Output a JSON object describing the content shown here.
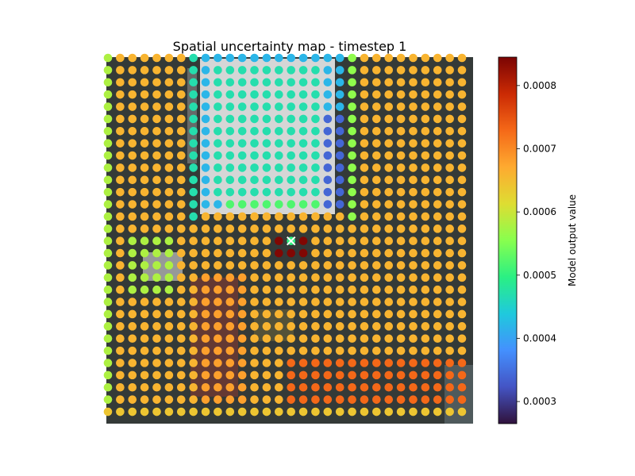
{
  "chart_data": {
    "type": "scatter",
    "title": "Spatial uncertainty map - timestep 1",
    "colorbar": {
      "label": "Model output value",
      "colormap": "turbo",
      "range": [
        0.000265,
        0.000845
      ],
      "ticks": [
        0.0003,
        0.0004,
        0.0005,
        0.0006,
        0.0007,
        0.0008
      ],
      "tick_labels": [
        "0.0003",
        "0.0004",
        "0.0005",
        "0.0006",
        "0.0007",
        "0.0008"
      ]
    },
    "grid": {
      "cols": 30,
      "rows": 30
    },
    "base_value": 0.00066,
    "value_regions": [
      {
        "name": "left-edge-column",
        "cols": [
          0,
          0
        ],
        "rows": [
          0,
          29
        ],
        "value": 0.00058
      },
      {
        "name": "left-band",
        "cols": [
          1,
          6
        ],
        "rows": [
          0,
          29
        ],
        "value": 0.00066
      },
      {
        "name": "upper-left-rim",
        "cols": [
          7,
          7
        ],
        "rows": [
          0,
          13
        ],
        "value": 0.00047
      },
      {
        "name": "upper-block-edge",
        "cols": [
          8,
          19
        ],
        "rows": [
          0,
          12
        ],
        "value": 0.00042
      },
      {
        "name": "upper-block-core",
        "cols": [
          9,
          17
        ],
        "rows": [
          1,
          11
        ],
        "value": 0.00047
      },
      {
        "name": "upper-block-right-rim",
        "cols": [
          18,
          19
        ],
        "rows": [
          5,
          12
        ],
        "value": 0.00034
      },
      {
        "name": "upper-right-edge",
        "cols": [
          20,
          20
        ],
        "rows": [
          0,
          13
        ],
        "value": 0.00056
      },
      {
        "name": "block-bottom-rim",
        "cols": [
          10,
          17
        ],
        "rows": [
          12,
          12
        ],
        "value": 0.00052
      },
      {
        "name": "small-left-patch",
        "cols": [
          3,
          4
        ],
        "rows": [
          16,
          18
        ],
        "value": 0.0005
      },
      {
        "name": "small-left-patch-rim",
        "cols": [
          2,
          5
        ],
        "rows": [
          15,
          19
        ],
        "value": 0.00058
      },
      {
        "name": "central-plume",
        "cols": [
          8,
          11
        ],
        "rows": [
          18,
          28
        ],
        "value": 0.00068
      },
      {
        "name": "lower-right-band",
        "cols": [
          15,
          29
        ],
        "rows": [
          25,
          28
        ],
        "value": 0.00073
      },
      {
        "name": "hotspot",
        "cols": [
          14,
          16
        ],
        "rows": [
          15,
          16
        ],
        "value": 0.00084
      },
      {
        "name": "hotspot-center",
        "cols": [
          15,
          15
        ],
        "rows": [
          15,
          15
        ],
        "value": 0.0005
      },
      {
        "name": "last-row",
        "cols": [
          0,
          29
        ],
        "rows": [
          29,
          29
        ],
        "value": 0.00064
      }
    ],
    "marker": {
      "type": "x",
      "col": 15,
      "row": 15,
      "color": "#ffffff"
    }
  }
}
